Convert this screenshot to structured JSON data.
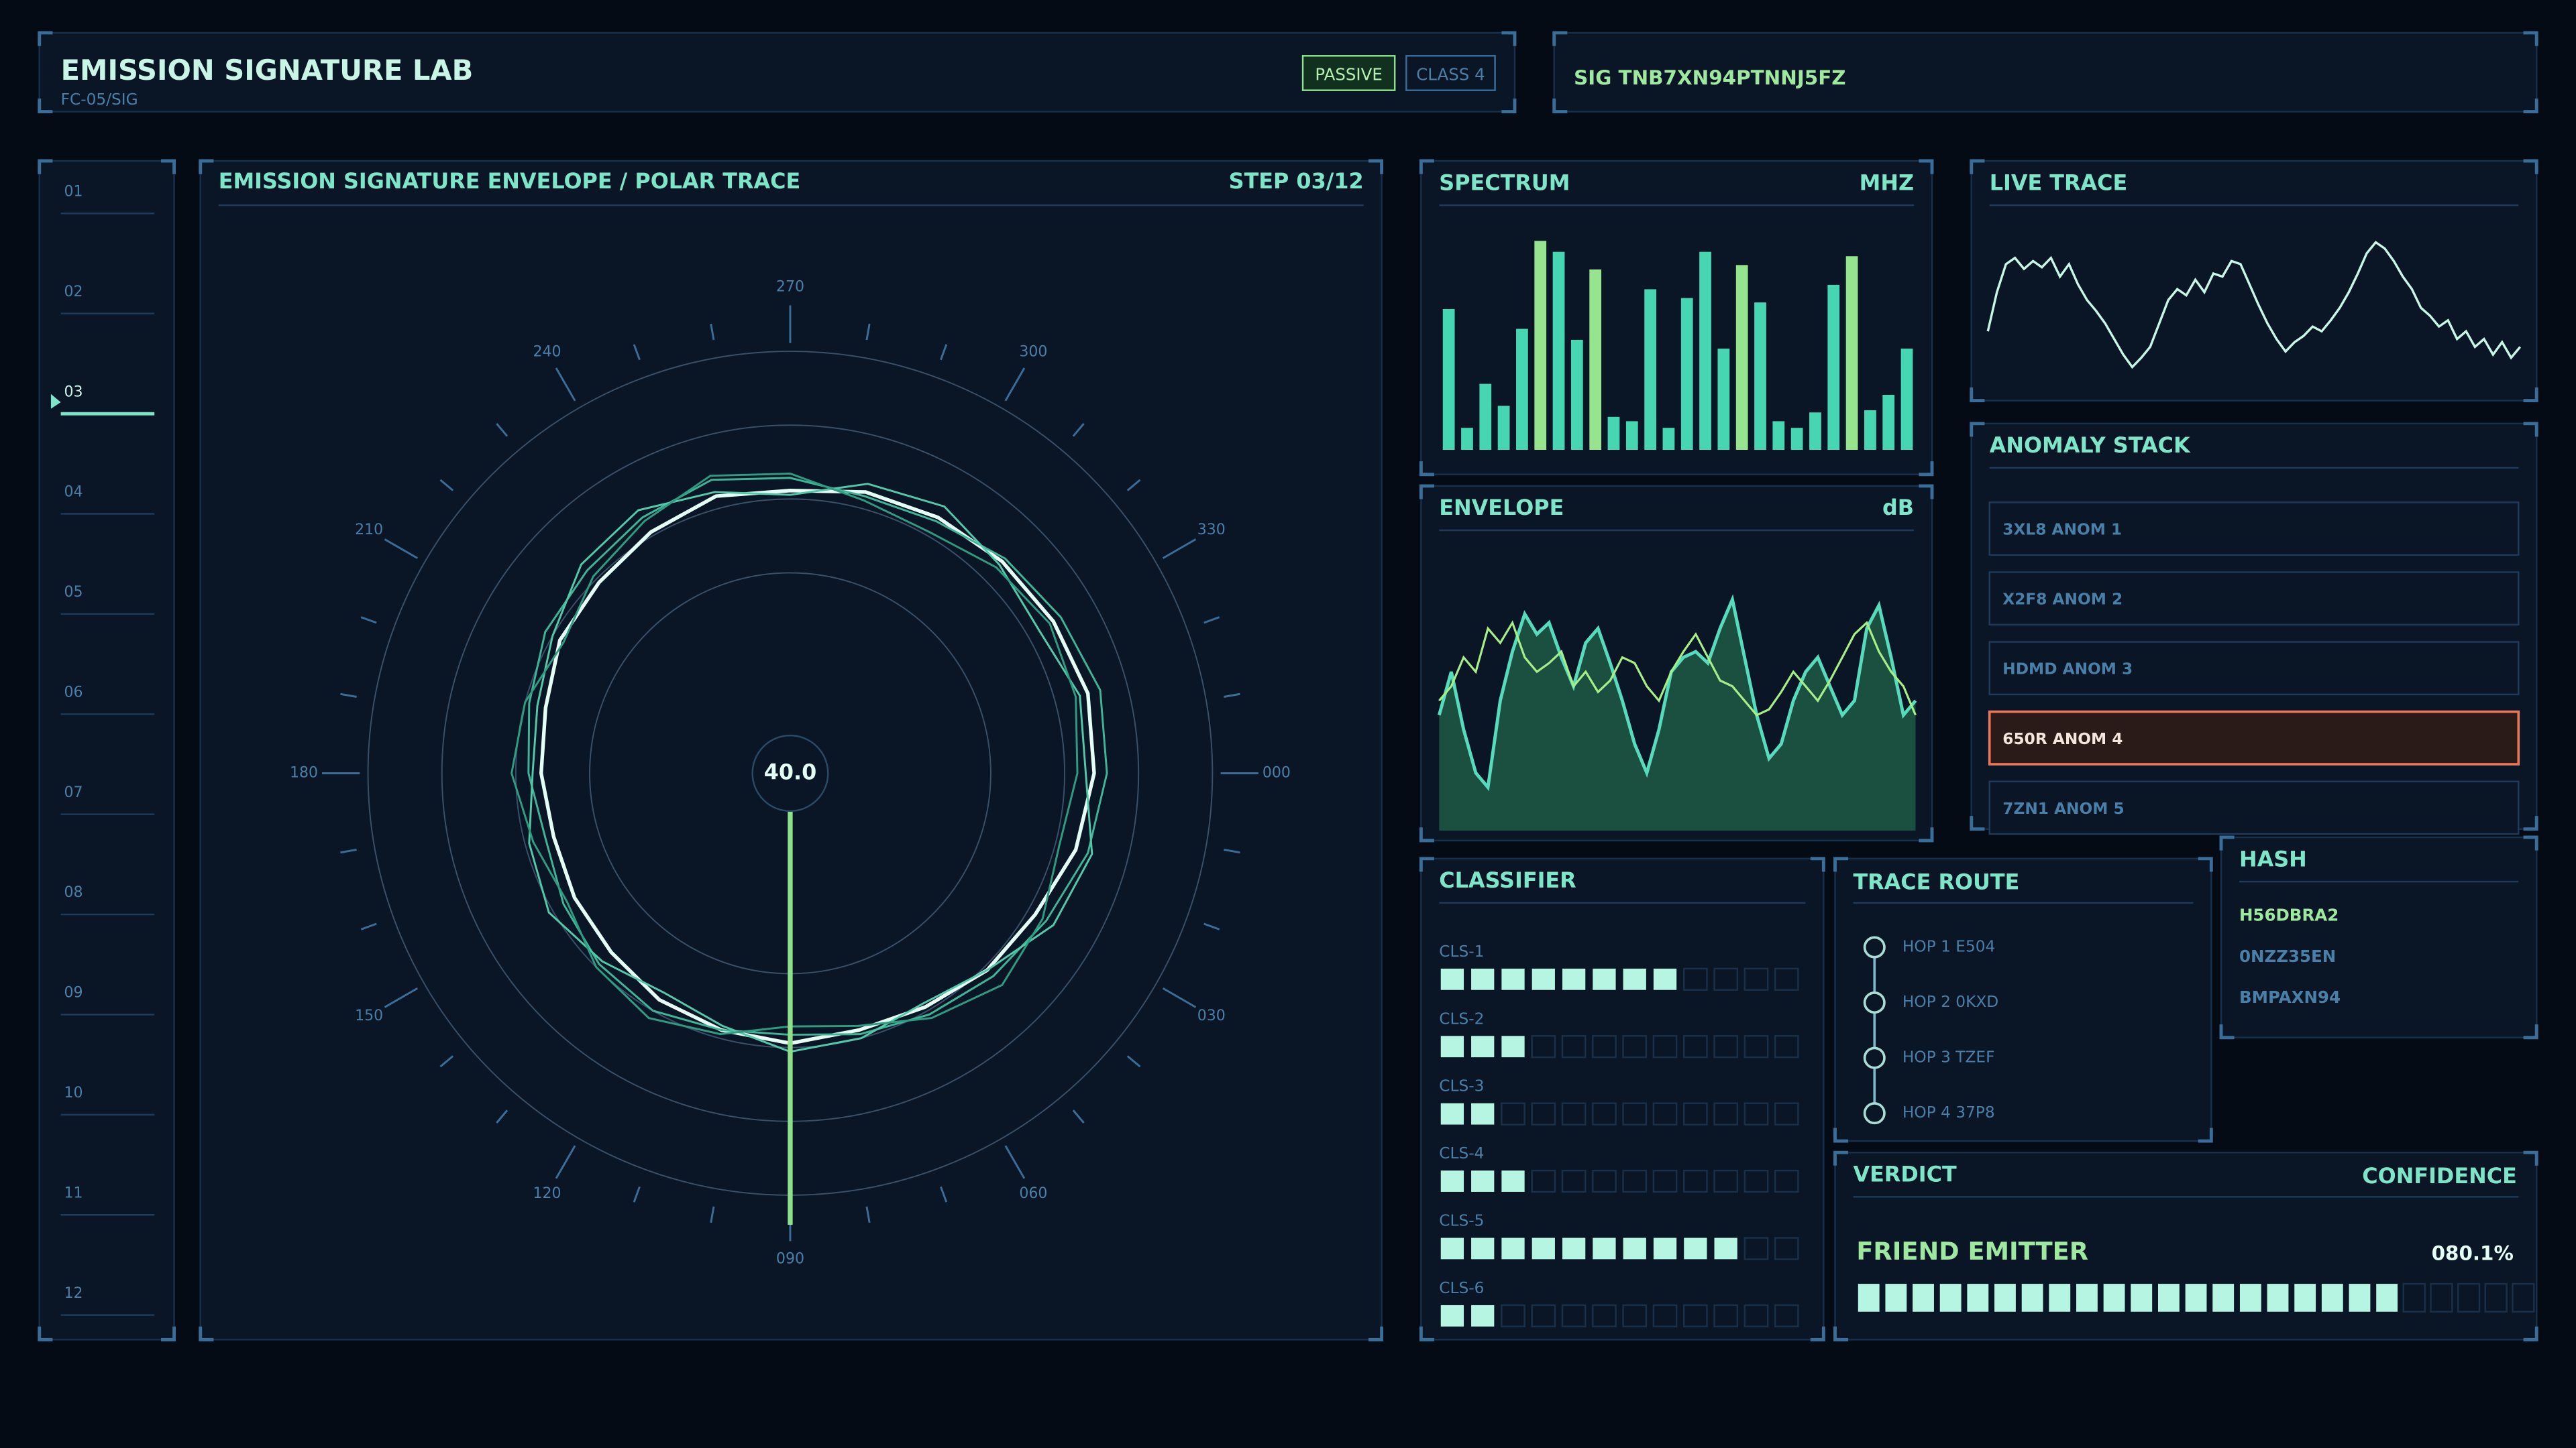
{
  "header": {
    "title": "EMISSION SIGNATURE LAB",
    "subtitle": "FC-05/SIG",
    "mode": "PASSIVE",
    "class_label": "CLASS 4",
    "signature": "SIG TNB7XN94PTNNJ5FZ"
  },
  "nav": {
    "items": [
      "01",
      "02",
      "03",
      "04",
      "05",
      "06",
      "07",
      "08",
      "09",
      "10",
      "11",
      "12"
    ],
    "active_index": 2
  },
  "chart_data": [
    {
      "type": "polar",
      "title": "EMISSION SIGNATURE ENVELOPE / POLAR TRACE",
      "step": "STEP 03/12",
      "center_label": "40.0",
      "rlim": [
        0,
        100
      ],
      "thetaticks": [
        {
          "value": 0,
          "label": "000"
        },
        {
          "value": 30,
          "label": "030"
        },
        {
          "value": 60,
          "label": "060"
        },
        {
          "value": 90,
          "label": "090"
        },
        120,
        150,
        180,
        210,
        240,
        270,
        300,
        330
      ],
      "theta": [
        0,
        15,
        30,
        45,
        60,
        75,
        90,
        105,
        120,
        135,
        150,
        165,
        180,
        195,
        210,
        225,
        240,
        255,
        270,
        285,
        300,
        315,
        330,
        345
      ],
      "series": [
        {
          "color": "#e6fff6",
          "values": [
            72,
            70,
            67,
            66,
            64,
            63,
            64,
            63,
            62,
            60,
            59,
            58,
            59,
            60,
            63,
            64,
            66,
            68,
            67,
            69,
            70,
            71,
            72,
            73
          ]
        },
        {
          "color": "#3fb598",
          "values": [
            75,
            73,
            70,
            68,
            66,
            64,
            62,
            63,
            65,
            64,
            62,
            60,
            62,
            64,
            67,
            68,
            70,
            72,
            70,
            68,
            69,
            72,
            74,
            76
          ]
        },
        {
          "color": "#52c9a8",
          "values": [
            70,
            74,
            72,
            66,
            63,
            65,
            66,
            62,
            60,
            63,
            66,
            64,
            61,
            62,
            65,
            70,
            72,
            69,
            66,
            71,
            73,
            70,
            68,
            71
          ]
        },
        {
          "color": "#2f9c82",
          "values": [
            68,
            66,
            69,
            71,
            67,
            62,
            60,
            64,
            67,
            65,
            61,
            63,
            66,
            65,
            62,
            66,
            69,
            73,
            71,
            67,
            66,
            69,
            71,
            70
          ]
        }
      ]
    },
    {
      "type": "bar",
      "title": "SPECTRUM",
      "unit": "MHZ",
      "ylim": [
        0,
        100
      ],
      "values": [
        64,
        10,
        30,
        20,
        55,
        95,
        90,
        50,
        82,
        15,
        13,
        73,
        10,
        69,
        90,
        46,
        84,
        67,
        13,
        10,
        17,
        75,
        88,
        18,
        25,
        46
      ],
      "colors": [
        "#46d6b2",
        "#46d6b2",
        "#46d6b2",
        "#46d6b2",
        "#46d6b2",
        "#96e48e",
        "#46d6b2",
        "#46d6b2",
        "#96e48e",
        "#46d6b2",
        "#46d6b2",
        "#46d6b2",
        "#46d6b2",
        "#46d6b2",
        "#46d6b2",
        "#46d6b2",
        "#96e48e",
        "#46d6b2",
        "#46d6b2",
        "#46d6b2",
        "#46d6b2",
        "#46d6b2",
        "#96e48e",
        "#46d6b2",
        "#46d6b2",
        "#46d6b2"
      ]
    },
    {
      "type": "area",
      "title": "ENVELOPE",
      "unit": "dB",
      "ylim": [
        0,
        100
      ],
      "series": [
        {
          "color": "#56dcbc",
          "fill": "#1f5a46",
          "values": [
            40,
            55,
            35,
            20,
            15,
            45,
            62,
            75,
            68,
            72,
            60,
            50,
            65,
            70,
            58,
            45,
            30,
            20,
            35,
            55,
            60,
            62,
            58,
            70,
            80,
            60,
            40,
            25,
            30,
            45,
            55,
            60,
            50,
            40,
            45,
            70,
            78,
            60,
            40,
            45
          ]
        },
        {
          "color": "#a6ee88",
          "values": [
            45,
            50,
            60,
            55,
            70,
            65,
            72,
            60,
            55,
            58,
            62,
            50,
            55,
            48,
            52,
            60,
            58,
            50,
            45,
            55,
            62,
            68,
            60,
            52,
            50,
            45,
            40,
            42,
            48,
            55,
            50,
            45,
            52,
            60,
            68,
            72,
            62,
            55,
            50,
            40
          ]
        }
      ]
    },
    {
      "type": "line",
      "title": "LIVE TRACE",
      "ylim": [
        0,
        100
      ],
      "color": "#c8f7e6",
      "values": [
        35,
        60,
        78,
        82,
        75,
        80,
        76,
        82,
        70,
        78,
        65,
        55,
        48,
        40,
        30,
        20,
        12,
        18,
        25,
        40,
        55,
        62,
        58,
        68,
        60,
        72,
        70,
        80,
        78,
        65,
        52,
        40,
        30,
        22,
        28,
        32,
        38,
        35,
        42,
        50,
        60,
        72,
        85,
        92,
        88,
        80,
        70,
        62,
        50,
        45,
        38,
        42,
        30,
        35,
        25,
        30,
        20,
        28,
        18,
        25
      ]
    }
  ],
  "anomaly_stack": {
    "title": "ANOMALY STACK",
    "items": [
      "3XL8  ANOM 1",
      "X2F8  ANOM 2",
      "HDMD  ANOM 3",
      "650R  ANOM 4",
      "7ZN1  ANOM 5"
    ],
    "alert_index": 3
  },
  "classifier": {
    "title": "CLASSIFIER",
    "rows": [
      {
        "label": "CLS-1",
        "filled": 8,
        "cells": 12
      },
      {
        "label": "CLS-2",
        "filled": 3,
        "cells": 12
      },
      {
        "label": "CLS-3",
        "filled": 2,
        "cells": 12
      },
      {
        "label": "CLS-4",
        "filled": 3,
        "cells": 12
      },
      {
        "label": "CLS-5",
        "filled": 10,
        "cells": 12
      },
      {
        "label": "CLS-6",
        "filled": 2,
        "cells": 12
      }
    ]
  },
  "trace_route": {
    "title": "TRACE ROUTE",
    "hops": [
      "HOP 1 E504",
      "HOP 2 0KXD",
      "HOP 3 TZEF",
      "HOP 4 37P8"
    ]
  },
  "hash": {
    "title": "HASH",
    "items": [
      "H56DBRA2",
      "0NZZ35EN",
      "BMPAXN94"
    ],
    "highlight_index": 0
  },
  "verdict": {
    "title": "VERDICT",
    "confidence_title": "CONFIDENCE",
    "result": "FRIEND EMITTER",
    "confidence": {
      "value": 80.1,
      "label": "080.1%"
    },
    "cells": 25
  }
}
